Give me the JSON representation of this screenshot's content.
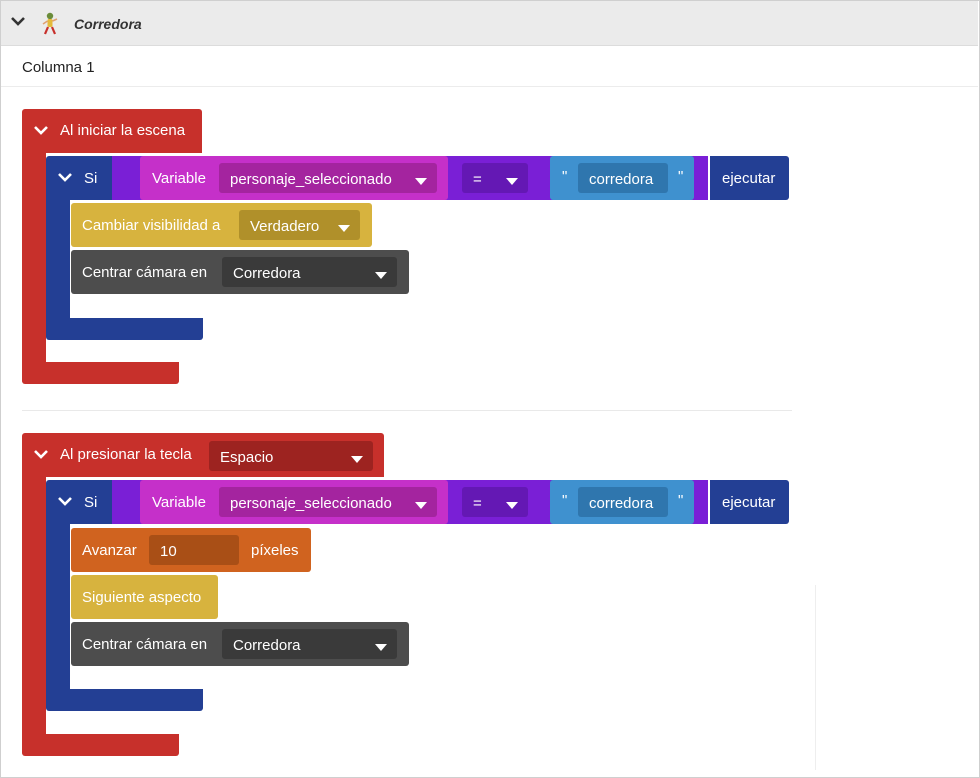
{
  "header": {
    "title": "Corredora",
    "icons": {
      "collapse": "chevron-down-icon",
      "sprite": "runner-sprite-icon"
    }
  },
  "column": {
    "label": "Columna 1"
  },
  "colors": {
    "event": "#c7302b",
    "control": "#233f94",
    "operator": "#7a1fd6",
    "variable": "#c530c9",
    "text": "#3f91cf",
    "looks": "#d7b33e",
    "camera": "#4d4d4d",
    "motion": "#d0631f"
  },
  "event1": {
    "hat_label": "Al iniciar la escena",
    "if_label": "Si",
    "variable_label": "Variable",
    "variable_value": "personaje_seleccionado",
    "operator_value": "=",
    "quote_open": "\"",
    "text_value": "corredora",
    "quote_close": "\"",
    "execute_label": "ejecutar",
    "visibility_label": "Cambiar visibilidad a",
    "visibility_value": "Verdadero",
    "camera_label": "Centrar cámara en",
    "camera_value": "Corredora"
  },
  "event2": {
    "hat_label": "Al presionar la tecla",
    "key_value": "Espacio",
    "if_label": "Si",
    "variable_label": "Variable",
    "variable_value": "personaje_seleccionado",
    "operator_value": "=",
    "quote_open": "\"",
    "text_value": "corredora",
    "quote_close": "\"",
    "execute_label": "ejecutar",
    "advance_label": "Avanzar",
    "advance_value": "10",
    "advance_unit": "píxeles",
    "next_costume_label": "Siguiente aspecto",
    "camera_label": "Centrar cámara en",
    "camera_value": "Corredora"
  }
}
